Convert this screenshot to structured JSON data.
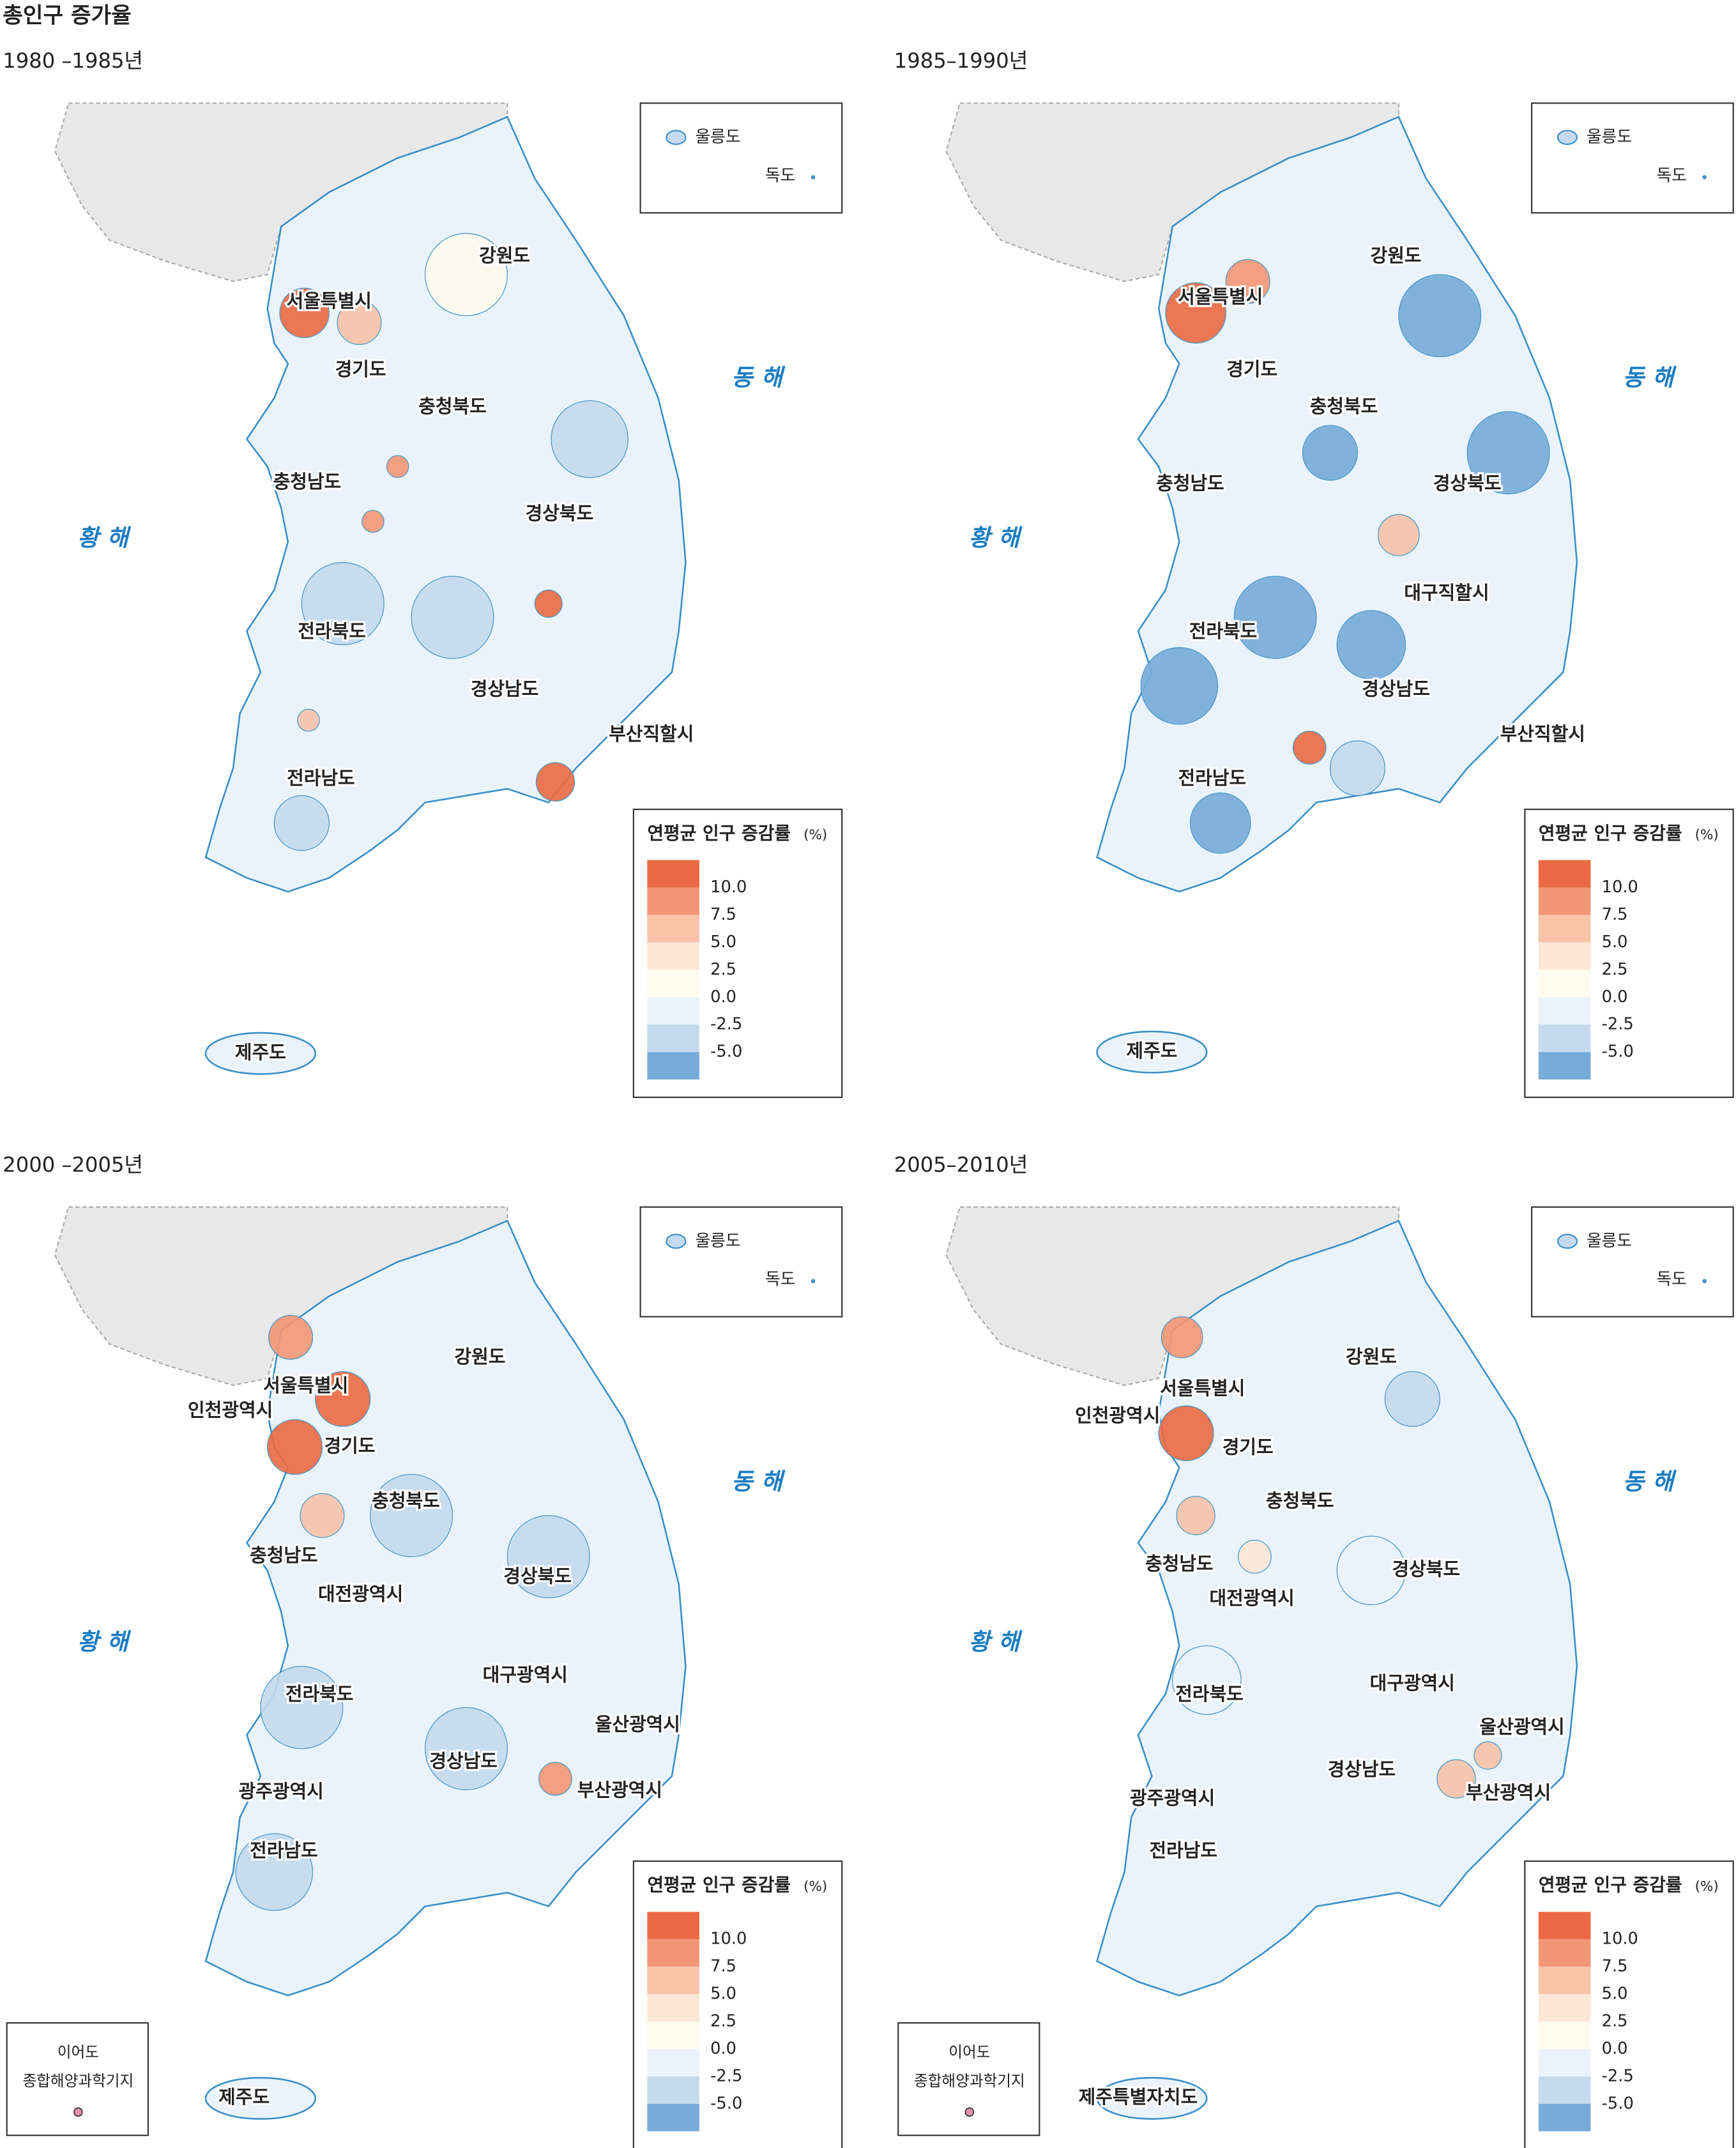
{
  "title": "총인구 증가율",
  "legend_colors": [
    "#ec6a43",
    "#f39675",
    "#f8c3a8",
    "#fde7d6",
    "#fffbee",
    "#eaf3fb",
    "#c5daee",
    "#77acd9"
  ],
  "panels": [
    {
      "period": "1980 –1985년",
      "west_sea": "황 해",
      "east_sea": "동 해",
      "ulleungdo": "울릉도",
      "dokdo": "독도",
      "regions": [
        "강원도",
        "서울특별시",
        "경기도",
        "충청북도",
        "충청남도",
        "경상북도",
        "전라북도",
        "경상남도",
        "부산직할시",
        "전라남도",
        "제주도"
      ],
      "legend": {
        "title": "연평균 인구 증감률",
        "unit": "(%)",
        "ticks": [
          {
            "value": 10,
            "label": "10.0"
          },
          {
            "value": 7.5,
            "label": "7.5"
          },
          {
            "value": 5,
            "label": "5.0"
          },
          {
            "value": 2.5,
            "label": "2.5"
          },
          {
            "value": 0,
            "label": "0.0"
          },
          {
            "value": -2.5,
            "label": "-2.5"
          },
          {
            "value": -5,
            "label": "-5.0"
          }
        ]
      }
    },
    {
      "period": "1985–1990년",
      "west_sea": "황 해",
      "east_sea": "동 해",
      "ulleungdo": "울릉도",
      "dokdo": "독도",
      "regions": [
        "강원도",
        "서울특별시",
        "경기도",
        "충청북도",
        "충청남도",
        "경상북도",
        "대구직할시",
        "전라북도",
        "경상남도",
        "부산직할시",
        "전라남도",
        "제주도"
      ],
      "legend": {
        "title": "연평균 인구 증감률",
        "unit": "(%)",
        "ticks": [
          {
            "value": 10,
            "label": "10.0"
          },
          {
            "value": 7.5,
            "label": "7.5"
          },
          {
            "value": 5,
            "label": "5.0"
          },
          {
            "value": 2.5,
            "label": "2.5"
          },
          {
            "value": 0,
            "label": "0.0"
          },
          {
            "value": -2.5,
            "label": "-2.5"
          },
          {
            "value": -5,
            "label": "-5.0"
          }
        ]
      }
    },
    {
      "period": "2000 –2005년",
      "west_sea": "황 해",
      "east_sea": "동 해",
      "ulleungdo": "울릉도",
      "dokdo": "독도",
      "regions": [
        "강원도",
        "서울특별시",
        "인천광역시",
        "경기도",
        "충청북도",
        "충청남도",
        "경상북도",
        "대전광역시",
        "대구광역시",
        "울산광역시",
        "전라북도",
        "경상남도",
        "부산광역시",
        "광주광역시",
        "전라남도",
        "제주도"
      ],
      "station": {
        "name": "이어도",
        "desc": "종합해양과학기지"
      },
      "legend": {
        "title": "연평균 인구 증감률",
        "unit": "(%)",
        "ticks": [
          {
            "value": 10,
            "label": "10.0"
          },
          {
            "value": 7.5,
            "label": "7.5"
          },
          {
            "value": 5,
            "label": "5.0"
          },
          {
            "value": 2.5,
            "label": "2.5"
          },
          {
            "value": 0,
            "label": "0.0"
          },
          {
            "value": -2.5,
            "label": "-2.5"
          },
          {
            "value": -5,
            "label": "-5.0"
          }
        ]
      }
    },
    {
      "period": "2005–2010년",
      "west_sea": "황 해",
      "east_sea": "동 해",
      "ulleungdo": "울릉도",
      "dokdo": "독도",
      "regions": [
        "강원도",
        "서울특별시",
        "인천광역시",
        "경기도",
        "충청북도",
        "충청남도",
        "경상북도",
        "대전광역시",
        "대구광역시",
        "울산광역시",
        "전라북도",
        "경상남도",
        "부산광역시",
        "광주광역시",
        "전라남도",
        "제주특별자치도"
      ],
      "station": {
        "name": "이어도",
        "desc": "종합해양과학기지"
      },
      "legend": {
        "title": "연평균 인구 증감률",
        "unit": "(%)",
        "ticks": [
          {
            "value": 10,
            "label": "10.0"
          },
          {
            "value": 7.5,
            "label": "7.5"
          },
          {
            "value": 5,
            "label": "5.0"
          },
          {
            "value": 2.5,
            "label": "2.5"
          },
          {
            "value": 0,
            "label": "0.0"
          },
          {
            "value": -2.5,
            "label": "-2.5"
          },
          {
            "value": -5,
            "label": "-5.0"
          }
        ]
      }
    }
  ]
}
